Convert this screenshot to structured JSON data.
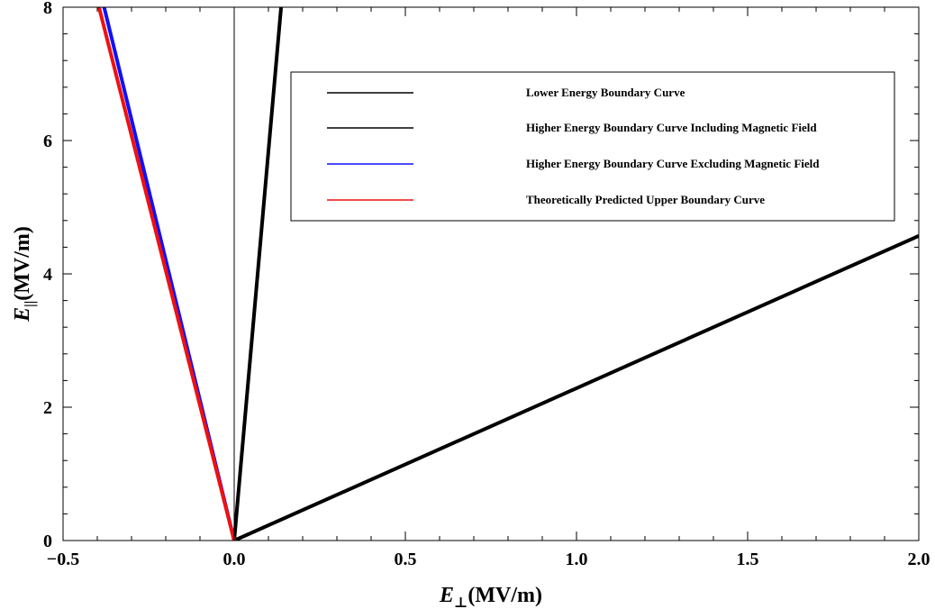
{
  "chart_data": {
    "type": "line",
    "xlabel": {
      "symbol": "E",
      "subscript": "⊥",
      "unit": "(MV/m)"
    },
    "ylabel": {
      "symbol": "E",
      "subscript": "||",
      "unit": "(MV/m)"
    },
    "xlim": [
      -0.5,
      2.0
    ],
    "ylim": [
      0,
      8
    ],
    "x_ticks": [
      -0.5,
      0.0,
      0.5,
      1.0,
      1.5,
      2.0
    ],
    "x_tick_labels": [
      "−0.5",
      "0.0",
      "0.5",
      "1.0",
      "1.5",
      "2.0"
    ],
    "y_ticks": [
      0,
      2,
      4,
      6,
      8
    ],
    "y_tick_labels": [
      "0",
      "2",
      "4",
      "6",
      "8"
    ],
    "x_minor_step": 0.1,
    "y_minor_step": 0.4,
    "grid": false,
    "legend_position": "top-right",
    "series": [
      {
        "name": "Lower Energy Boundary Curve",
        "color": "#000000",
        "style": "thin",
        "points": [
          [
            0.0,
            0.0
          ],
          [
            0.0,
            8.0
          ]
        ]
      },
      {
        "name": "Higher Energy Boundary Curve Including Magnetic Field",
        "color": "#000000",
        "style": "thick",
        "segments": [
          [
            [
              0.0,
              0.0
            ],
            [
              0.137,
              8.0
            ]
          ],
          [
            [
              0.0,
              0.0
            ],
            [
              2.0,
              4.57
            ]
          ]
        ]
      },
      {
        "name": "Higher Energy Boundary Curve Excluding Magnetic Field",
        "color": "#1010ff",
        "style": "thick",
        "points": [
          [
            0.0,
            0.0
          ],
          [
            -0.38,
            8.0
          ]
        ]
      },
      {
        "name": "Theoretically Predicted Upper Boundary Curve",
        "color": "#ee1111",
        "style": "thick",
        "points": [
          [
            0.0,
            0.0
          ],
          [
            -0.395,
            8.0
          ]
        ]
      }
    ]
  }
}
